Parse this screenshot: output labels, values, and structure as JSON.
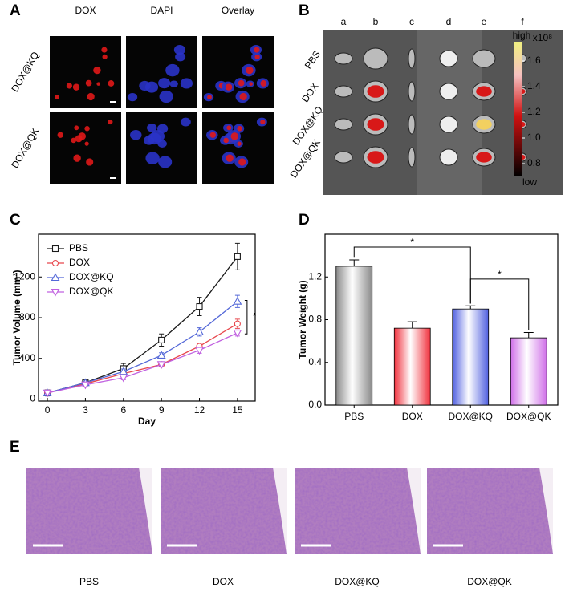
{
  "panels": {
    "a": {
      "label": "A",
      "columns": [
        "DOX",
        "DAPI",
        "Overlay"
      ],
      "rows": [
        "DOX@KQ",
        "DOX@QK"
      ]
    },
    "b": {
      "label": "B",
      "columns": [
        "a",
        "b",
        "c",
        "d",
        "e",
        "f"
      ],
      "rows": [
        "PBS",
        "DOX",
        "DOX@KQ",
        "DOX@QK"
      ],
      "colorbar": {
        "high": "high",
        "low": "low",
        "unit": "x10⁸",
        "range": [
          0.7,
          1.75
        ],
        "ticks": [
          1.6,
          1.4,
          1.2,
          {
            "value": 1,
            "label": "1.0"
          },
          0.8
        ]
      }
    },
    "e": {
      "label": "E",
      "captions": [
        "PBS",
        "DOX",
        "DOX@KQ",
        "DOX@QK"
      ]
    }
  },
  "chart_data": [
    {
      "type": "line",
      "panel": "C",
      "x_label": "Day",
      "y_label": "Tumor Volume (mm³)",
      "x": [
        0,
        3,
        6,
        9,
        12,
        15
      ],
      "xlim": [
        -0.7,
        16.4
      ],
      "xticks": [
        0,
        3,
        6,
        9,
        12,
        15
      ],
      "ylim": [
        -20,
        1620
      ],
      "yticks": [
        0,
        400,
        800,
        1200
      ],
      "series": [
        {
          "name": "PBS",
          "color": "#1a1a1a",
          "marker": "square",
          "values": [
            60,
            160,
            300,
            580,
            910,
            1400
          ],
          "errors": [
            30,
            20,
            50,
            60,
            90,
            130
          ]
        },
        {
          "name": "DOX",
          "color": "#e8474d",
          "marker": "circle",
          "values": [
            60,
            150,
            250,
            340,
            520,
            740
          ],
          "errors": [
            20,
            15,
            25,
            20,
            30,
            45
          ]
        },
        {
          "name": "DOX@KQ",
          "color": "#5468d8",
          "marker": "triangle-up",
          "values": [
            60,
            160,
            270,
            430,
            660,
            960
          ],
          "errors": [
            20,
            15,
            25,
            25,
            40,
            60
          ]
        },
        {
          "name": "DOX@QK",
          "color": "#c060e0",
          "marker": "triangle-down",
          "values": [
            60,
            140,
            210,
            340,
            480,
            650
          ],
          "errors": [
            20,
            15,
            20,
            20,
            30,
            30
          ]
        }
      ],
      "annotations": [
        "*"
      ]
    },
    {
      "type": "bar",
      "panel": "D",
      "y_label": "Tumor Weight (g)",
      "categories": [
        "PBS",
        "DOX",
        "DOX@KQ",
        "DOX@QK"
      ],
      "values": [
        1.3,
        0.72,
        0.9,
        0.63
      ],
      "errors": [
        0.06,
        0.06,
        0.03,
        0.05
      ],
      "colors": [
        "#8a8a8a",
        "#f0303c",
        "#5060e0",
        "#d070e8"
      ],
      "ylim": [
        0,
        1.6
      ],
      "yticks": [
        {
          "value": 0,
          "label": "0.0"
        },
        0.4,
        0.8,
        1.2
      ],
      "annotations": [
        "*",
        "*"
      ]
    }
  ]
}
